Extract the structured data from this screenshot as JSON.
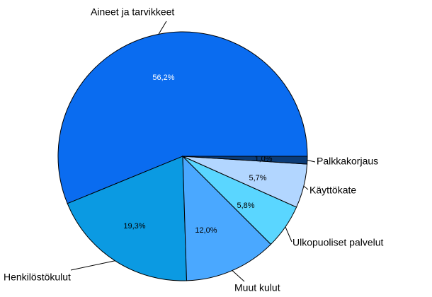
{
  "chart_data": {
    "type": "pie",
    "categories": [
      "Aineet ja tarvikkeet",
      "Henkilöstökulut",
      "Muut kulut",
      "Ulkopuoliset palvelut",
      "Käyttökate",
      "Palkkakorjaus"
    ],
    "values": [
      56.2,
      19.3,
      12.0,
      5.8,
      5.7,
      1.0
    ],
    "value_labels": [
      "56,2%",
      "19,3%",
      "12,0%",
      "5,8%",
      "5,7%",
      "1,0%"
    ],
    "colors": [
      "#0a6cf0",
      "#0b9ae2",
      "#4aa8ff",
      "#5ad6ff",
      "#b2d6ff",
      "#0b3c78"
    ]
  }
}
